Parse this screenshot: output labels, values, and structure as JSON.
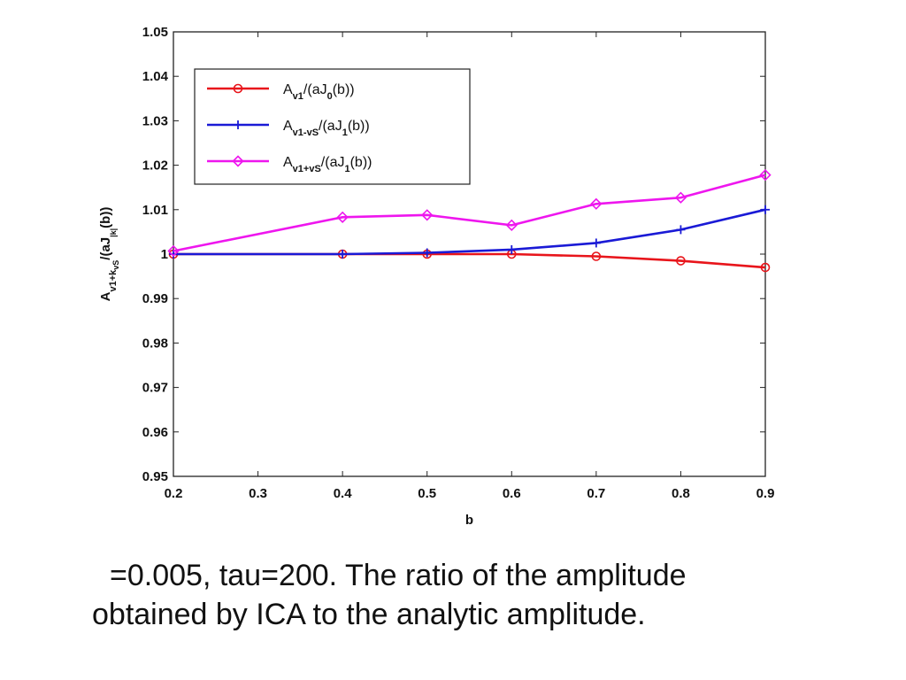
{
  "chart_data": {
    "type": "line",
    "x": [
      0.2,
      0.4,
      0.5,
      0.6,
      0.7,
      0.8,
      0.9
    ],
    "xlim": [
      0.2,
      0.9
    ],
    "ylim": [
      0.95,
      1.05
    ],
    "xticks": [
      "0.2",
      "0.3",
      "0.4",
      "0.5",
      "0.6",
      "0.7",
      "0.8",
      "0.9"
    ],
    "xtick_values": [
      0.2,
      0.3,
      0.4,
      0.5,
      0.6,
      0.7,
      0.8,
      0.9
    ],
    "yticks": [
      "0.95",
      "0.96",
      "0.97",
      "0.98",
      "0.99",
      "1",
      "1.01",
      "1.02",
      "1.03",
      "1.04",
      "1.05"
    ],
    "ytick_values": [
      0.95,
      0.96,
      0.97,
      0.98,
      0.99,
      1.0,
      1.01,
      1.02,
      1.03,
      1.04,
      1.05
    ],
    "xlabel": "b",
    "ylabel": {
      "base": "A",
      "base_sub": "v1+k",
      "base_sub2": "vS",
      "mid": "/(aJ",
      "mid_sub": "|k|",
      "tail": "(b))"
    },
    "grid": false,
    "legend_position": "top-left",
    "series": [
      {
        "name": "Av1/(aJ0(b))",
        "legend": {
          "base": "A",
          "sub": "v1",
          "mid": "/(aJ",
          "sub2": "0",
          "tail": "(b))"
        },
        "color": "#e8151b",
        "marker": "circle",
        "values": [
          1.0,
          1.0,
          1.0,
          1.0,
          0.9995,
          0.9985,
          0.997
        ]
      },
      {
        "name": "Av1-vS/(aJ1(b))",
        "legend": {
          "base": "A",
          "sub": "v1-vS",
          "mid": "/(aJ",
          "sub2": "1",
          "tail": "(b))"
        },
        "color": "#1a1ad6",
        "marker": "plus",
        "values": [
          1.0,
          1.0,
          1.0003,
          1.001,
          1.0025,
          1.0055,
          1.01
        ]
      },
      {
        "name": "Av1+vS/(aJ1(b))",
        "legend": {
          "base": "A",
          "sub": "v1+vS",
          "mid": "/(aJ",
          "sub2": "1",
          "tail": "(b))"
        },
        "color": "#ee16ee",
        "marker": "diamond",
        "values": [
          1.0007,
          1.0083,
          1.0088,
          1.0065,
          1.0113,
          1.0127,
          1.0178
        ]
      }
    ]
  },
  "caption": {
    "line1": "=0.005, tau=200. The ratio of the amplitude",
    "line2": "obtained by ICA to the analytic amplitude."
  }
}
